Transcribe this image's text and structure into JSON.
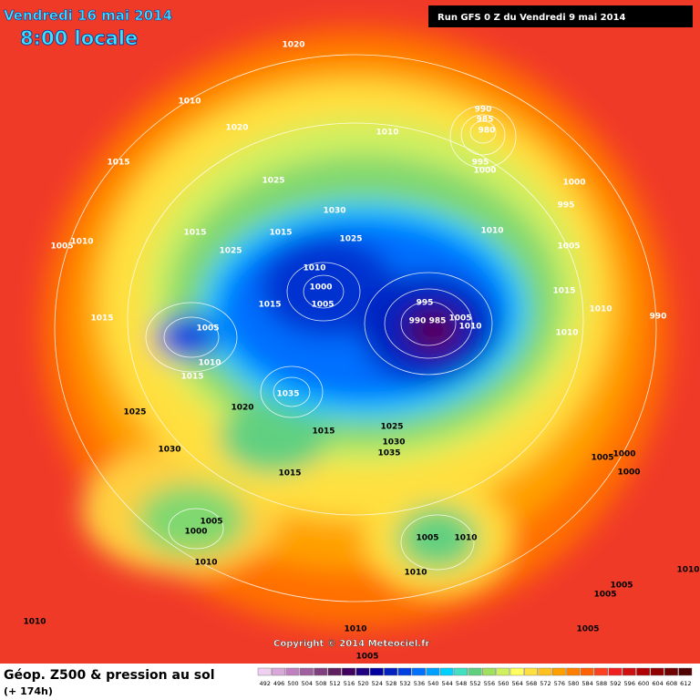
{
  "header": {
    "date": "Vendredi 16 mai 2014",
    "time": "8:00 locale",
    "run": "Run GFS 0 Z du Vendredi 9 mai 2014"
  },
  "copyright": "Copyright © 2014 Meteociel.fr",
  "footer": {
    "title": "Géop. Z500 & pression au sol",
    "lead": "(+ 174h)"
  },
  "isobar_labels": [
    "1020",
    "1010",
    "1020",
    "1010",
    "990",
    "985",
    "980",
    "995",
    "1000",
    "1015",
    "1025",
    "1030",
    "1000",
    "995",
    "1010",
    "1015",
    "1005",
    "1010",
    "1025",
    "1015",
    "1025",
    "1005",
    "1010",
    "1000",
    "1005",
    "1015",
    "995",
    "990",
    "985",
    "1005",
    "1010",
    "1015",
    "1010",
    "990",
    "1015",
    "1005",
    "1010",
    "1015",
    "1010",
    "1035",
    "1025",
    "1020",
    "1015",
    "1030",
    "1025",
    "1030",
    "1035",
    "1015",
    "1005",
    "1000",
    "1000",
    "1005",
    "1000",
    "1005",
    "1010",
    "1010",
    "1010",
    "1010",
    "1005",
    "1005",
    "1010",
    "1005",
    "1010",
    "1005"
  ],
  "scale": {
    "values": [
      492,
      496,
      500,
      504,
      508,
      512,
      516,
      520,
      524,
      528,
      532,
      536,
      540,
      544,
      548,
      552,
      556,
      560,
      564,
      568,
      572,
      576,
      580,
      584,
      588,
      592,
      596,
      600,
      604,
      608,
      612
    ],
    "colors": [
      "#f0d0f0",
      "#d8a8d8",
      "#c080c0",
      "#a060a0",
      "#804080",
      "#602060",
      "#400060",
      "#200080",
      "#0000a0",
      "#0020c0",
      "#0040e0",
      "#0070ff",
      "#00a0ff",
      "#00d0ff",
      "#40e0c0",
      "#60d080",
      "#a0e060",
      "#d0f060",
      "#ffff60",
      "#ffe040",
      "#ffc020",
      "#ffa000",
      "#ff8000",
      "#ff6000",
      "#ff4020",
      "#f02020",
      "#d01010",
      "#b00000",
      "#900000",
      "#700000",
      "#500000"
    ]
  }
}
